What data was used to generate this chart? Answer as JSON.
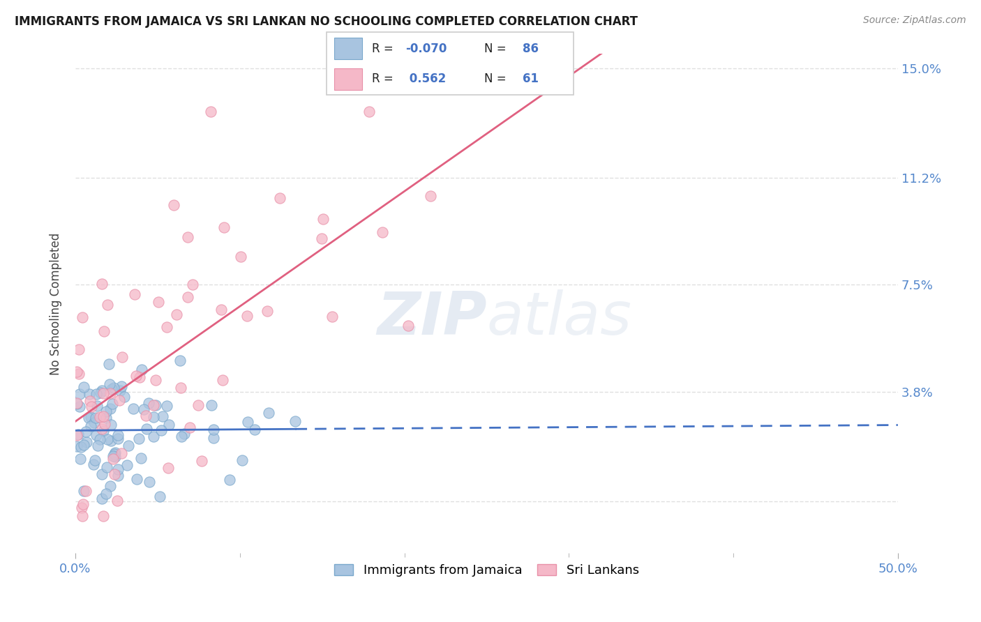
{
  "title": "IMMIGRANTS FROM JAMAICA VS SRI LANKAN NO SCHOOLING COMPLETED CORRELATION CHART",
  "source": "Source: ZipAtlas.com",
  "ylabel": "No Schooling Completed",
  "xlim": [
    0.0,
    0.5
  ],
  "ylim": [
    -0.018,
    0.155
  ],
  "jamaica_R": -0.07,
  "jamaica_N": 86,
  "srilanka_R": 0.562,
  "srilanka_N": 61,
  "jamaica_color": "#a8c4e0",
  "jamaica_edge_color": "#7aa8cc",
  "srilanka_color": "#f5b8c8",
  "srilanka_edge_color": "#e890a8",
  "jamaica_line_color": "#4472c4",
  "srilanka_line_color": "#e06080",
  "watermark_color": "#ccd8e8",
  "background_color": "#ffffff",
  "grid_color": "#e0e0e0",
  "tick_color": "#5588cc",
  "title_color": "#1a1a1a",
  "source_color": "#888888",
  "ylabel_color": "#444444",
  "legend_R_color": "#000000",
  "legend_N_color": "#4472c4",
  "y_tick_positions": [
    0.0,
    0.038,
    0.075,
    0.112,
    0.15
  ],
  "y_tick_labels": [
    "",
    "3.8%",
    "7.5%",
    "11.2%",
    "15.0%"
  ],
  "x_tick_positions": [
    0.0,
    0.5
  ],
  "x_tick_labels": [
    "0.0%",
    "50.0%"
  ]
}
